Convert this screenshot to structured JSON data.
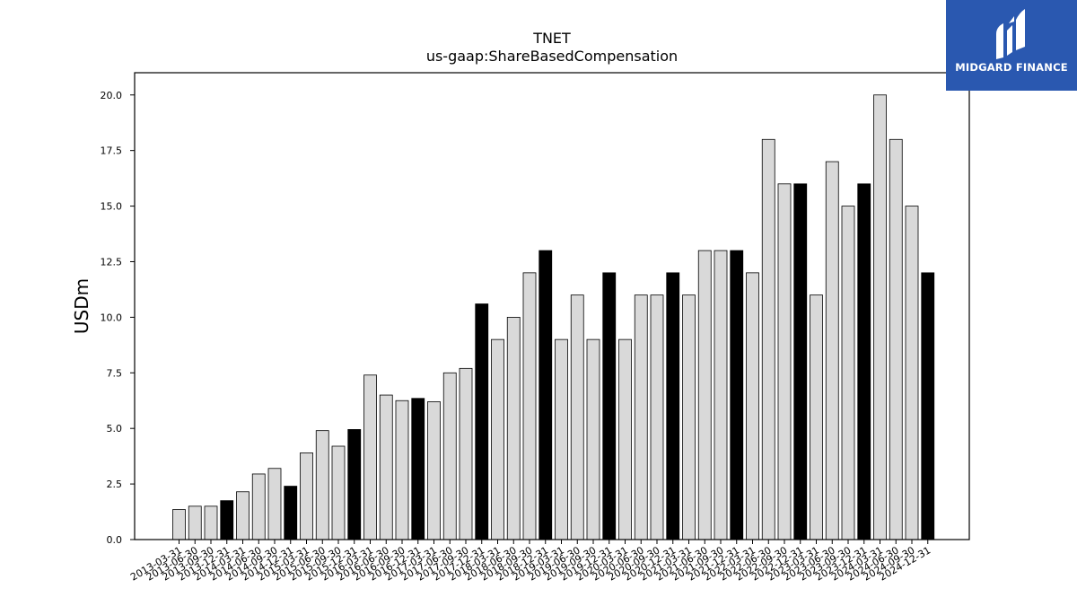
{
  "brand": {
    "name": "MIDGARD FINANCE",
    "icon": "midgard-logo-icon",
    "background": "#2a58b0"
  },
  "chart_data": {
    "type": "bar",
    "title": "TNET",
    "subtitle": "us-gaap:ShareBasedCompensation",
    "xlabel": "",
    "ylabel": "USDm",
    "ylim": [
      0,
      21
    ],
    "yticks": [
      "0.0",
      "2.5",
      "5.0",
      "7.5",
      "10.0",
      "12.5",
      "15.0",
      "17.5",
      "20.0"
    ],
    "grid": false,
    "colors": {
      "quarter": "#d9d9d9",
      "year_end": "#000000",
      "edge": "#000000"
    },
    "categories": [
      "2013-03-31",
      "2013-06-30",
      "2013-09-30",
      "2013-12-31",
      "2014-03-31",
      "2014-06-30",
      "2014-09-30",
      "2014-12-31",
      "2015-03-31",
      "2015-06-30",
      "2015-09-30",
      "2015-12-31",
      "2016-03-31",
      "2016-06-30",
      "2016-09-30",
      "2016-12-31",
      "2017-03-31",
      "2017-06-30",
      "2017-09-30",
      "2017-12-31",
      "2018-03-31",
      "2018-06-30",
      "2018-09-30",
      "2018-12-31",
      "2019-03-31",
      "2019-06-30",
      "2019-09-30",
      "2019-12-31",
      "2020-03-31",
      "2020-06-30",
      "2020-09-30",
      "2020-12-31",
      "2021-03-31",
      "2021-06-30",
      "2021-09-30",
      "2021-12-31",
      "2022-03-31",
      "2022-06-30",
      "2022-09-30",
      "2022-12-31",
      "2023-03-31",
      "2023-06-30",
      "2023-09-30",
      "2023-12-31",
      "2024-03-31",
      "2024-06-30",
      "2024-09-30",
      "2024-12-31"
    ],
    "values": [
      1.35,
      1.5,
      1.5,
      1.75,
      2.15,
      2.95,
      3.2,
      2.4,
      3.9,
      4.9,
      4.2,
      4.95,
      7.4,
      6.5,
      6.25,
      6.35,
      6.2,
      7.5,
      7.7,
      10.6,
      9.0,
      10.0,
      12.0,
      13.0,
      9.0,
      11.0,
      9.0,
      12.0,
      9.0,
      11.0,
      11.0,
      12.0,
      11.0,
      13.0,
      13.0,
      13.0,
      12.0,
      18.0,
      16.0,
      16.0,
      11.0,
      17.0,
      15.0,
      16.0,
      20.0,
      18.0,
      15.0,
      12.0
    ],
    "highlight": [
      false,
      false,
      false,
      true,
      false,
      false,
      false,
      true,
      false,
      false,
      false,
      true,
      false,
      false,
      false,
      true,
      false,
      false,
      false,
      true,
      false,
      false,
      false,
      true,
      false,
      false,
      false,
      true,
      false,
      false,
      false,
      true,
      false,
      false,
      false,
      true,
      false,
      false,
      false,
      true,
      false,
      false,
      false,
      true,
      false,
      false,
      false,
      true
    ]
  }
}
